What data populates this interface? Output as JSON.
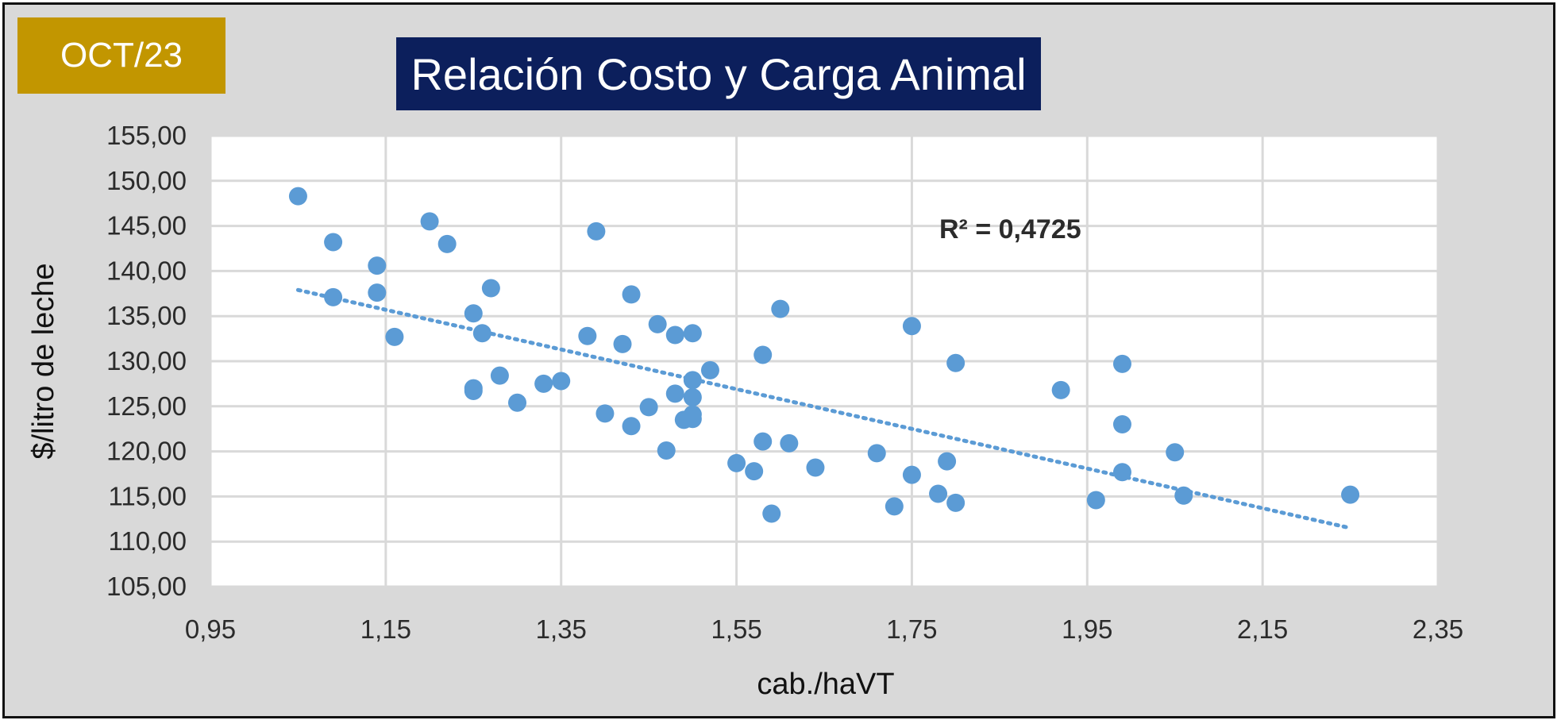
{
  "badge": {
    "text": "OCT/23",
    "color": "#c29600"
  },
  "header": {
    "title": "Relación Costo y Carga Animal",
    "color": "#0c1f5c"
  },
  "chart_data": {
    "type": "scatter",
    "title": "Relación Costo y Carga Animal",
    "xlabel": "cab./haVT",
    "ylabel": "$/litro de leche",
    "xlim": [
      0.95,
      2.35
    ],
    "ylim": [
      105,
      155
    ],
    "x_ticks": [
      "0,95",
      "1,15",
      "1,35",
      "1,55",
      "1,75",
      "1,95",
      "2,15",
      "2,35"
    ],
    "y_ticks": [
      "155,00",
      "150,00",
      "145,00",
      "140,00",
      "135,00",
      "130,00",
      "125,00",
      "120,00",
      "115,00",
      "110,00",
      "105,00"
    ],
    "grid": true,
    "point_color": "#5b9bd5",
    "annotation": "R² = 0,4725",
    "trendline": {
      "type": "linear",
      "x": [
        1.05,
        2.25
      ],
      "y": [
        137.9,
        111.5
      ],
      "style": "dotted"
    },
    "points": [
      [
        1.05,
        148.3
      ],
      [
        1.09,
        143.2
      ],
      [
        1.09,
        137.1
      ],
      [
        1.14,
        140.6
      ],
      [
        1.14,
        137.6
      ],
      [
        1.16,
        132.7
      ],
      [
        1.2,
        145.5
      ],
      [
        1.22,
        143.0
      ],
      [
        1.25,
        135.3
      ],
      [
        1.25,
        127.0
      ],
      [
        1.25,
        126.7
      ],
      [
        1.26,
        133.1
      ],
      [
        1.27,
        138.1
      ],
      [
        1.28,
        128.4
      ],
      [
        1.3,
        125.4
      ],
      [
        1.33,
        127.5
      ],
      [
        1.35,
        127.8
      ],
      [
        1.38,
        132.8
      ],
      [
        1.39,
        144.4
      ],
      [
        1.4,
        124.2
      ],
      [
        1.42,
        131.9
      ],
      [
        1.43,
        137.4
      ],
      [
        1.43,
        122.8
      ],
      [
        1.45,
        124.9
      ],
      [
        1.46,
        134.1
      ],
      [
        1.47,
        120.1
      ],
      [
        1.48,
        126.4
      ],
      [
        1.48,
        132.9
      ],
      [
        1.49,
        123.5
      ],
      [
        1.5,
        133.1
      ],
      [
        1.5,
        127.9
      ],
      [
        1.5,
        126.0
      ],
      [
        1.5,
        124.1
      ],
      [
        1.5,
        123.6
      ],
      [
        1.52,
        129.0
      ],
      [
        1.55,
        118.7
      ],
      [
        1.57,
        117.8
      ],
      [
        1.58,
        121.1
      ],
      [
        1.58,
        130.7
      ],
      [
        1.59,
        113.1
      ],
      [
        1.6,
        135.8
      ],
      [
        1.61,
        120.9
      ],
      [
        1.64,
        118.2
      ],
      [
        1.71,
        119.8
      ],
      [
        1.73,
        113.9
      ],
      [
        1.75,
        133.9
      ],
      [
        1.75,
        117.4
      ],
      [
        1.78,
        115.3
      ],
      [
        1.79,
        118.9
      ],
      [
        1.8,
        114.3
      ],
      [
        1.8,
        129.8
      ],
      [
        1.92,
        126.8
      ],
      [
        1.96,
        114.6
      ],
      [
        1.99,
        129.7
      ],
      [
        1.99,
        123.0
      ],
      [
        1.99,
        117.7
      ],
      [
        2.05,
        119.9
      ],
      [
        2.06,
        115.1
      ],
      [
        2.25,
        115.2
      ]
    ]
  }
}
